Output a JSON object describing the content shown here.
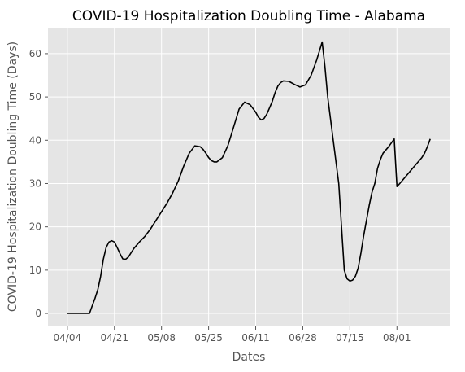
{
  "chart_data": {
    "type": "line",
    "title": "COVID-19 Hospitalization Doubling Time - Alabama",
    "xlabel": "Dates",
    "ylabel": "COVID-19 Hospitalization Doubling Time (Days)",
    "xlim": [
      -7,
      138
    ],
    "ylim": [
      -3,
      66
    ],
    "grid": true,
    "x_ticks": [
      {
        "x": 0,
        "label": "04/04"
      },
      {
        "x": 17,
        "label": "04/21"
      },
      {
        "x": 34,
        "label": "05/08"
      },
      {
        "x": 51,
        "label": "05/25"
      },
      {
        "x": 68,
        "label": "06/11"
      },
      {
        "x": 85,
        "label": "06/28"
      },
      {
        "x": 102,
        "label": "07/15"
      },
      {
        "x": 119,
        "label": "08/01"
      }
    ],
    "y_ticks": [
      0,
      10,
      20,
      30,
      40,
      50,
      60
    ],
    "colors": {
      "background": "#e5e5e5",
      "grid": "#ffffff",
      "line": "#000000"
    },
    "series": [
      {
        "name": "",
        "x": [
          0,
          2,
          4,
          6,
          7,
          8,
          9,
          10,
          11,
          12,
          13,
          14,
          15,
          16,
          17,
          18,
          19,
          20,
          21,
          22,
          23,
          24,
          26,
          28,
          30,
          32,
          34,
          36,
          38,
          40,
          42,
          44,
          46,
          48,
          49,
          50,
          51,
          52,
          53,
          54,
          56,
          58,
          60,
          62,
          64,
          66,
          68,
          69,
          70,
          71,
          72,
          73,
          74,
          75,
          76,
          77,
          78,
          80,
          82,
          84,
          86,
          88,
          90,
          92,
          93,
          94,
          96,
          98,
          99,
          100,
          101,
          102,
          103,
          104,
          105,
          106,
          107,
          108,
          109,
          110,
          111,
          112,
          113,
          114,
          116,
          118,
          119,
          120,
          122,
          124,
          126,
          128,
          129,
          130,
          131
        ],
        "y": [
          0,
          0,
          0,
          0,
          0,
          0,
          1.8,
          3.5,
          5.5,
          8.5,
          12.5,
          15.2,
          16.5,
          16.8,
          16.5,
          15.2,
          13.8,
          12.6,
          12.5,
          13.0,
          14.0,
          15.0,
          16.5,
          17.8,
          19.5,
          21.5,
          23.5,
          25.5,
          27.8,
          30.5,
          34.0,
          37.0,
          38.7,
          38.5,
          37.9,
          37.0,
          36.0,
          35.3,
          35.0,
          35.0,
          36.0,
          38.8,
          43.0,
          47.2,
          48.8,
          48.2,
          46.5,
          45.3,
          44.7,
          45.0,
          46.0,
          47.5,
          49.0,
          51.0,
          52.5,
          53.3,
          53.7,
          53.6,
          52.9,
          52.3,
          52.8,
          55.0,
          58.5,
          62.7,
          57.0,
          50.0,
          40.0,
          30.0,
          20.0,
          10.0,
          8.0,
          7.5,
          7.7,
          8.6,
          10.5,
          14.0,
          18.0,
          21.5,
          25.0,
          28.0,
          30.0,
          33.5,
          35.5,
          37.0,
          38.5,
          40.3,
          29.3,
          30.0,
          31.5,
          33.0,
          34.5,
          36.0,
          37.0,
          38.5,
          40.3
        ]
      }
    ]
  }
}
